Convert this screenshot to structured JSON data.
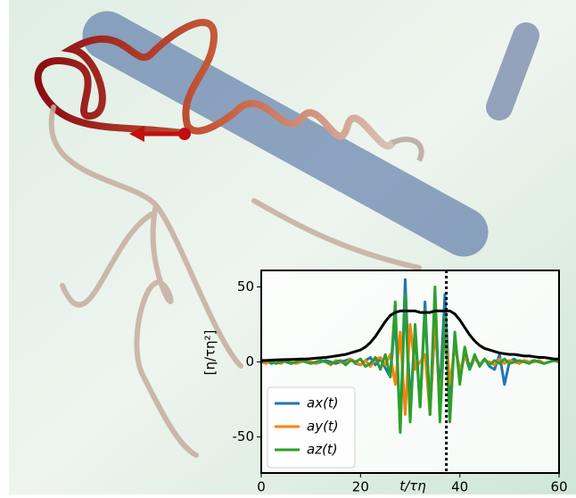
{
  "chart_data": {
    "type": "line",
    "x_label": "t/τη",
    "y_label": "[η/τη²]",
    "x": [
      0,
      1,
      2,
      3,
      4,
      5,
      6,
      7,
      8,
      9,
      10,
      11,
      12,
      13,
      14,
      15,
      16,
      17,
      18,
      19,
      20,
      21,
      22,
      23,
      24,
      25,
      26,
      27,
      28,
      29,
      30,
      31,
      32,
      33,
      34,
      35,
      36,
      37,
      38,
      39,
      40,
      41,
      42,
      43,
      44,
      45,
      46,
      47,
      48,
      49,
      50,
      51,
      52,
      53,
      54,
      55,
      56,
      57,
      58,
      59,
      60
    ],
    "series": [
      {
        "name": "ax(t)",
        "color": "#1f77b4",
        "values": [
          0,
          1,
          -1,
          0,
          1,
          0,
          -1,
          0,
          1,
          0,
          0,
          -1,
          0,
          1,
          0,
          -1,
          0,
          1,
          2,
          -1,
          -2,
          1,
          3,
          -2,
          2,
          -4,
          -10,
          30,
          -45,
          55,
          -30,
          20,
          -30,
          40,
          -35,
          25,
          -20,
          45,
          -25,
          15,
          -10,
          5,
          -5,
          3,
          -2,
          2,
          -3,
          -5,
          5,
          -15,
          0,
          2,
          -1,
          1,
          0,
          1,
          0,
          -1,
          0,
          1,
          0
        ]
      },
      {
        "name": "ay(t)",
        "color": "#ff7f0e",
        "values": [
          0,
          -1,
          1,
          0,
          -1,
          1,
          0,
          -1,
          0,
          1,
          0,
          -1,
          1,
          0,
          -2,
          1,
          0,
          -1,
          2,
          0,
          -2,
          1,
          -3,
          2,
          3,
          -2,
          5,
          -15,
          20,
          -35,
          25,
          -5,
          0,
          5,
          -35,
          30,
          -30,
          25,
          -15,
          10,
          -5,
          3,
          -2,
          2,
          -1,
          1,
          0,
          -2,
          2,
          -1,
          1,
          0,
          -1,
          1,
          0,
          0,
          1,
          -1,
          0,
          1,
          0
        ]
      },
      {
        "name": "az(t)",
        "color": "#2ca02c",
        "values": [
          0,
          1,
          0,
          -1,
          0,
          1,
          -1,
          0,
          1,
          0,
          -1,
          0,
          1,
          0,
          -1,
          0,
          1,
          -2,
          1,
          0,
          2,
          -3,
          -1,
          3,
          -5,
          5,
          -10,
          40,
          -47,
          45,
          -40,
          25,
          -30,
          35,
          -35,
          50,
          -40,
          30,
          -40,
          20,
          -15,
          10,
          -5,
          5,
          -3,
          2,
          -2,
          1,
          -1,
          2,
          -1,
          0,
          1,
          0,
          -1,
          1,
          0,
          -1,
          0,
          1,
          0
        ]
      },
      {
        "color": "#000000",
        "values": [
          1,
          1,
          1.2,
          1.4,
          1.5,
          1.6,
          1.7,
          1.8,
          2,
          2,
          2.2,
          2.5,
          2.8,
          3,
          3.5,
          4,
          4.5,
          5,
          6,
          7,
          8,
          10,
          13,
          17,
          22,
          27,
          31,
          33,
          34,
          34,
          34,
          34,
          33,
          33,
          33,
          34,
          34,
          34,
          34,
          32,
          28,
          23,
          18,
          14,
          11,
          9,
          8,
          7,
          6,
          5.5,
          5,
          5,
          4.5,
          4,
          4,
          3.5,
          3,
          3,
          2.5,
          2,
          2
        ]
      }
    ],
    "vline": 37.3,
    "xlim": [
      0,
      60
    ],
    "xticks": [
      0,
      20,
      40,
      60
    ],
    "ylim": [
      -74,
      61
    ],
    "yticks": [
      -50,
      0,
      50
    ],
    "legend": "lower-left"
  }
}
